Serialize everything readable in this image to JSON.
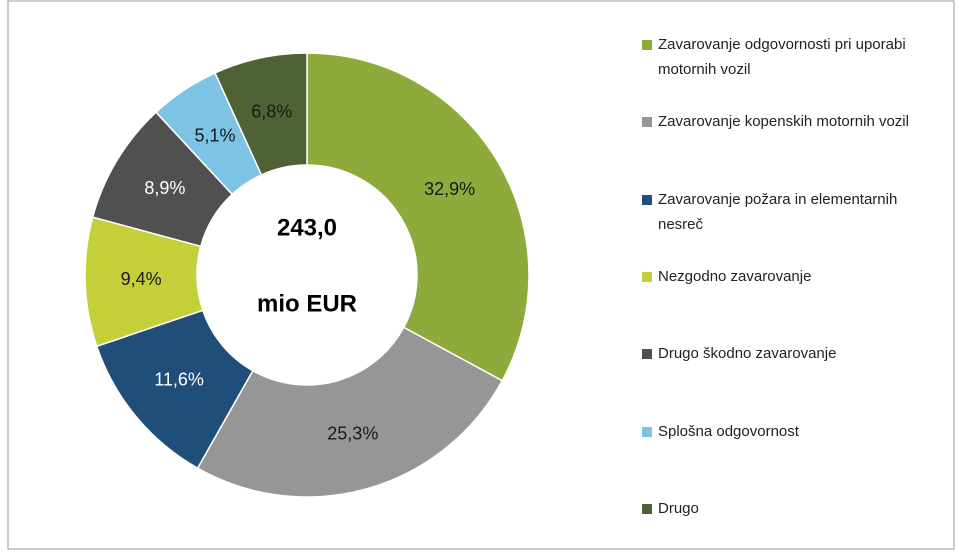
{
  "chart_data": {
    "type": "donut",
    "annotations": [
      "243,0",
      "mio EUR"
    ],
    "categories": [
      "Zavarovanje odgovornosti pri uporabi motornih vozil",
      "Zavarovanje kopenskih motornih vozil",
      "Zavarovanje požara in elementarnih nesreč",
      "Nezgodno zavarovanje",
      "Drugo škodno zavarovanje",
      "Splošna odgovornost",
      "Drugo"
    ],
    "values": [
      32.9,
      25.3,
      11.6,
      9.4,
      8.9,
      5.1,
      6.8
    ],
    "value_labels": [
      "32,9%",
      "25,3%",
      "11,6%",
      "9,4%",
      "8,9%",
      "5,1%",
      "6,8%"
    ],
    "colors": [
      "#8eaa3b",
      "#969696",
      "#1f4e79",
      "#c4cf3a",
      "#505050",
      "#7dc4e4",
      "#4e6236"
    ],
    "label_colors": [
      "#1a1a1a",
      "#1a1a1a",
      "#ffffff",
      "#1a1a1a",
      "#ffffff",
      "#1a1a1a",
      "#1a1a1a"
    ],
    "legend": "right"
  }
}
